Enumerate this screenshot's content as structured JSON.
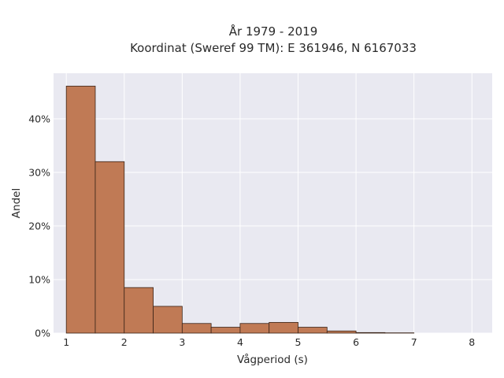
{
  "chart_data": {
    "type": "bar",
    "title": "År 1979 - 2019",
    "subtitle": "Koordinat (Sweref 99 TM): E 361946, N 6167033",
    "xlabel": "Vågperiod (s)",
    "ylabel": "Andel",
    "bin_width": 0.5,
    "bin_starts": [
      1.0,
      1.5,
      2.0,
      2.5,
      3.0,
      3.5,
      4.0,
      4.5,
      5.0,
      5.5,
      6.0,
      6.5
    ],
    "values": [
      46.1,
      32.0,
      8.5,
      5.0,
      1.8,
      1.1,
      1.8,
      2.0,
      1.1,
      0.4,
      0.1,
      0.05
    ],
    "xlim": [
      0.78,
      8.35
    ],
    "ylim": [
      0,
      48.5
    ],
    "xticks": [
      1,
      2,
      3,
      4,
      5,
      6,
      7,
      8
    ],
    "xtick_labels": [
      "1",
      "2",
      "3",
      "4",
      "5",
      "6",
      "7",
      "8"
    ],
    "yticks": [
      0,
      10,
      20,
      30,
      40
    ],
    "ytick_labels": [
      "0%",
      "10%",
      "20%",
      "30%",
      "40%"
    ],
    "bar_color": "#c07a55",
    "bar_edge_color": "#3a2418",
    "plot_background": "#e9e9f1",
    "grid": true,
    "grid_color": "#ffffff"
  }
}
